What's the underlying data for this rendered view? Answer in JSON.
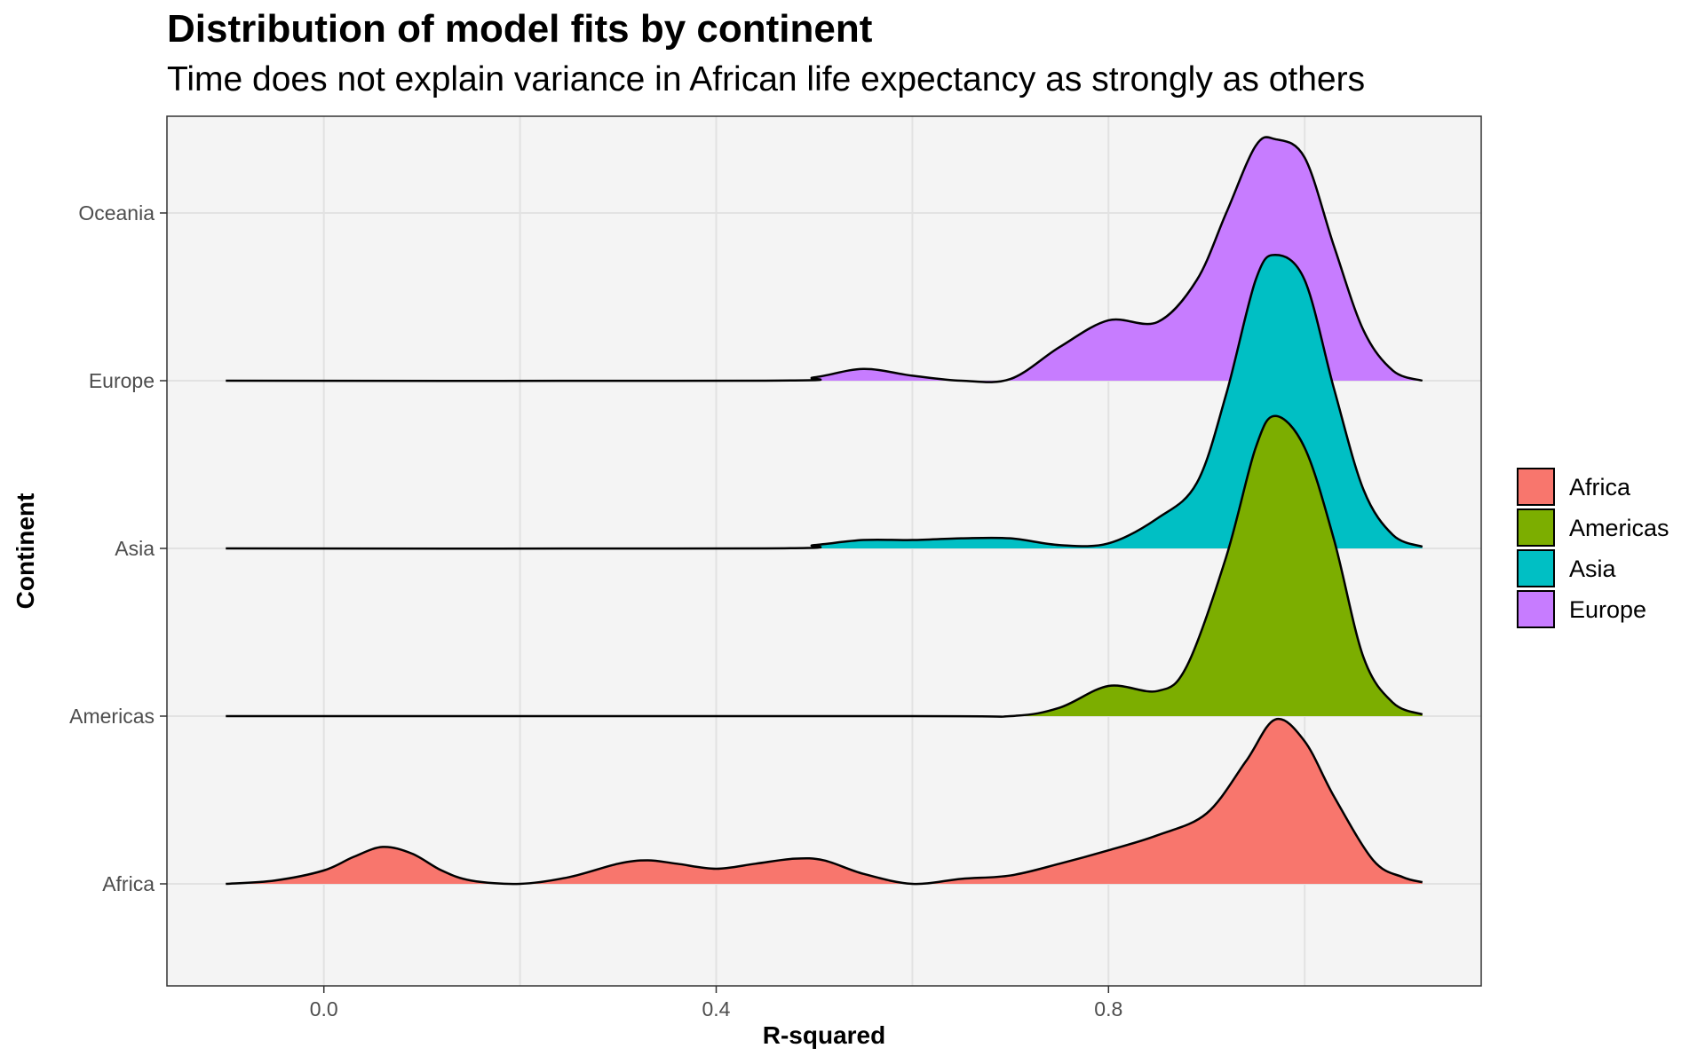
{
  "chart_data": {
    "type": "ridgeline",
    "title": "Distribution of model fits by continent",
    "subtitle": "Time does not explain variance in African life expectancy as strongly as others",
    "xlabel": "R-squared",
    "ylabel": "Continent",
    "xlim": [
      -0.16,
      1.18
    ],
    "x_ticks": [
      0.0,
      0.4,
      0.8
    ],
    "x_tick_labels": [
      "0.0",
      "0.4",
      "0.8"
    ],
    "categories": [
      "Africa",
      "Americas",
      "Asia",
      "Europe",
      "Oceania"
    ],
    "grid": true,
    "legend_position": "right",
    "legend": [
      {
        "name": "Africa",
        "color": "#F8766D"
      },
      {
        "name": "Americas",
        "color": "#7CAE00"
      },
      {
        "name": "Asia",
        "color": "#00BFC4"
      },
      {
        "name": "Europe",
        "color": "#C77CFF"
      }
    ],
    "series": [
      {
        "name": "Africa",
        "color": "#F8766D",
        "baseline": 0,
        "points": [
          [
            -0.1,
            0.0
          ],
          [
            -0.05,
            0.02
          ],
          [
            0.0,
            0.08
          ],
          [
            0.03,
            0.16
          ],
          [
            0.06,
            0.22
          ],
          [
            0.09,
            0.18
          ],
          [
            0.12,
            0.08
          ],
          [
            0.15,
            0.02
          ],
          [
            0.2,
            0.0
          ],
          [
            0.25,
            0.04
          ],
          [
            0.3,
            0.12
          ],
          [
            0.33,
            0.14
          ],
          [
            0.36,
            0.12
          ],
          [
            0.4,
            0.09
          ],
          [
            0.44,
            0.12
          ],
          [
            0.48,
            0.15
          ],
          [
            0.51,
            0.14
          ],
          [
            0.55,
            0.06
          ],
          [
            0.6,
            0.0
          ],
          [
            0.65,
            0.03
          ],
          [
            0.7,
            0.05
          ],
          [
            0.75,
            0.12
          ],
          [
            0.8,
            0.2
          ],
          [
            0.85,
            0.29
          ],
          [
            0.9,
            0.42
          ],
          [
            0.94,
            0.73
          ],
          [
            0.97,
            0.98
          ],
          [
            1.0,
            0.85
          ],
          [
            1.03,
            0.52
          ],
          [
            1.07,
            0.14
          ],
          [
            1.1,
            0.04
          ],
          [
            1.12,
            0.01
          ]
        ]
      },
      {
        "name": "Americas",
        "color": "#7CAE00",
        "baseline": 1,
        "points": [
          [
            -0.1,
            0.0
          ],
          [
            0.6,
            0.0
          ],
          [
            0.7,
            0.0
          ],
          [
            0.75,
            0.05
          ],
          [
            0.8,
            0.18
          ],
          [
            0.85,
            0.15
          ],
          [
            0.88,
            0.3
          ],
          [
            0.92,
            0.95
          ],
          [
            0.95,
            1.6
          ],
          [
            0.97,
            1.79
          ],
          [
            1.0,
            1.6
          ],
          [
            1.03,
            1.05
          ],
          [
            1.06,
            0.35
          ],
          [
            1.09,
            0.08
          ],
          [
            1.12,
            0.01
          ]
        ]
      },
      {
        "name": "Asia",
        "color": "#00BFC4",
        "baseline": 2,
        "points": [
          [
            -0.1,
            0.0
          ],
          [
            0.45,
            0.0
          ],
          [
            0.5,
            0.02
          ],
          [
            0.55,
            0.05
          ],
          [
            0.6,
            0.05
          ],
          [
            0.65,
            0.06
          ],
          [
            0.7,
            0.06
          ],
          [
            0.75,
            0.02
          ],
          [
            0.8,
            0.03
          ],
          [
            0.85,
            0.18
          ],
          [
            0.89,
            0.39
          ],
          [
            0.92,
            0.92
          ],
          [
            0.95,
            1.6
          ],
          [
            0.97,
            1.75
          ],
          [
            1.0,
            1.6
          ],
          [
            1.03,
            0.95
          ],
          [
            1.06,
            0.35
          ],
          [
            1.09,
            0.08
          ],
          [
            1.12,
            0.01
          ]
        ]
      },
      {
        "name": "Europe",
        "color": "#C77CFF",
        "baseline": 3,
        "points": [
          [
            -0.1,
            0.0
          ],
          [
            0.45,
            0.0
          ],
          [
            0.5,
            0.02
          ],
          [
            0.55,
            0.07
          ],
          [
            0.6,
            0.03
          ],
          [
            0.65,
            0.0
          ],
          [
            0.7,
            0.01
          ],
          [
            0.75,
            0.2
          ],
          [
            0.8,
            0.36
          ],
          [
            0.85,
            0.35
          ],
          [
            0.89,
            0.6
          ],
          [
            0.92,
            1.0
          ],
          [
            0.95,
            1.4
          ],
          [
            0.97,
            1.44
          ],
          [
            1.0,
            1.33
          ],
          [
            1.03,
            0.8
          ],
          [
            1.06,
            0.3
          ],
          [
            1.09,
            0.06
          ],
          [
            1.12,
            0.0
          ]
        ]
      }
    ]
  }
}
